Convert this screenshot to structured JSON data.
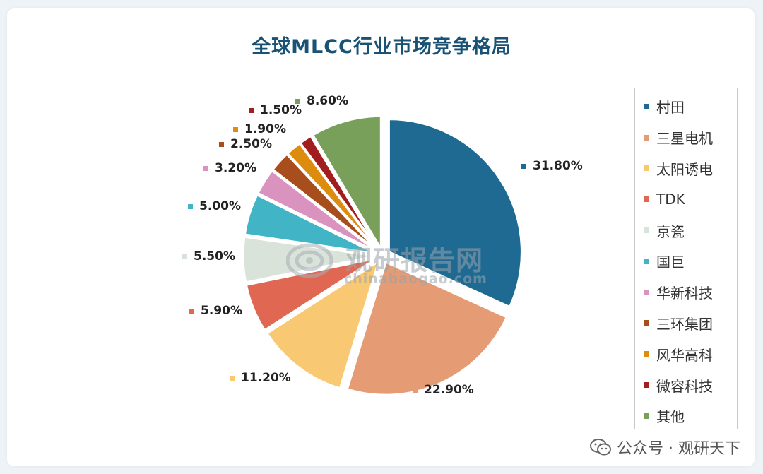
{
  "chart_data": {
    "type": "pie",
    "title": "全球MLCC行业市场竞争格局",
    "series": [
      {
        "name": "村田",
        "value": 31.8,
        "label": "31.80%",
        "color": "#1f6a92"
      },
      {
        "name": "三星电机",
        "value": 22.9,
        "label": "22.90%",
        "color": "#e59b74"
      },
      {
        "name": "太阳诱电",
        "value": 11.2,
        "label": "11.20%",
        "color": "#f8c872"
      },
      {
        "name": "TDK",
        "value": 5.9,
        "label": "5.90%",
        "color": "#e06751"
      },
      {
        "name": "京瓷",
        "value": 5.5,
        "label": "5.50%",
        "color": "#dae3d9"
      },
      {
        "name": "国巨",
        "value": 5.0,
        "label": "5.00%",
        "color": "#41b4c6"
      },
      {
        "name": "华新科技",
        "value": 3.2,
        "label": "3.20%",
        "color": "#d993be"
      },
      {
        "name": "三环集团",
        "value": 2.5,
        "label": "2.50%",
        "color": "#a84d1c"
      },
      {
        "name": "风华高科",
        "value": 1.9,
        "label": "1.90%",
        "color": "#dc8c0f"
      },
      {
        "name": "微容科技",
        "value": 1.5,
        "label": "1.50%",
        "color": "#a21d1d"
      },
      {
        "name": "其他",
        "value": 8.6,
        "label": "8.60%",
        "color": "#78a05a"
      }
    ],
    "legend_position": "right"
  },
  "watermark": {
    "name_cn": "观研报告网",
    "domain": "chinabaogao.com"
  },
  "footer": {
    "text": "公众号 · 观研天下"
  }
}
